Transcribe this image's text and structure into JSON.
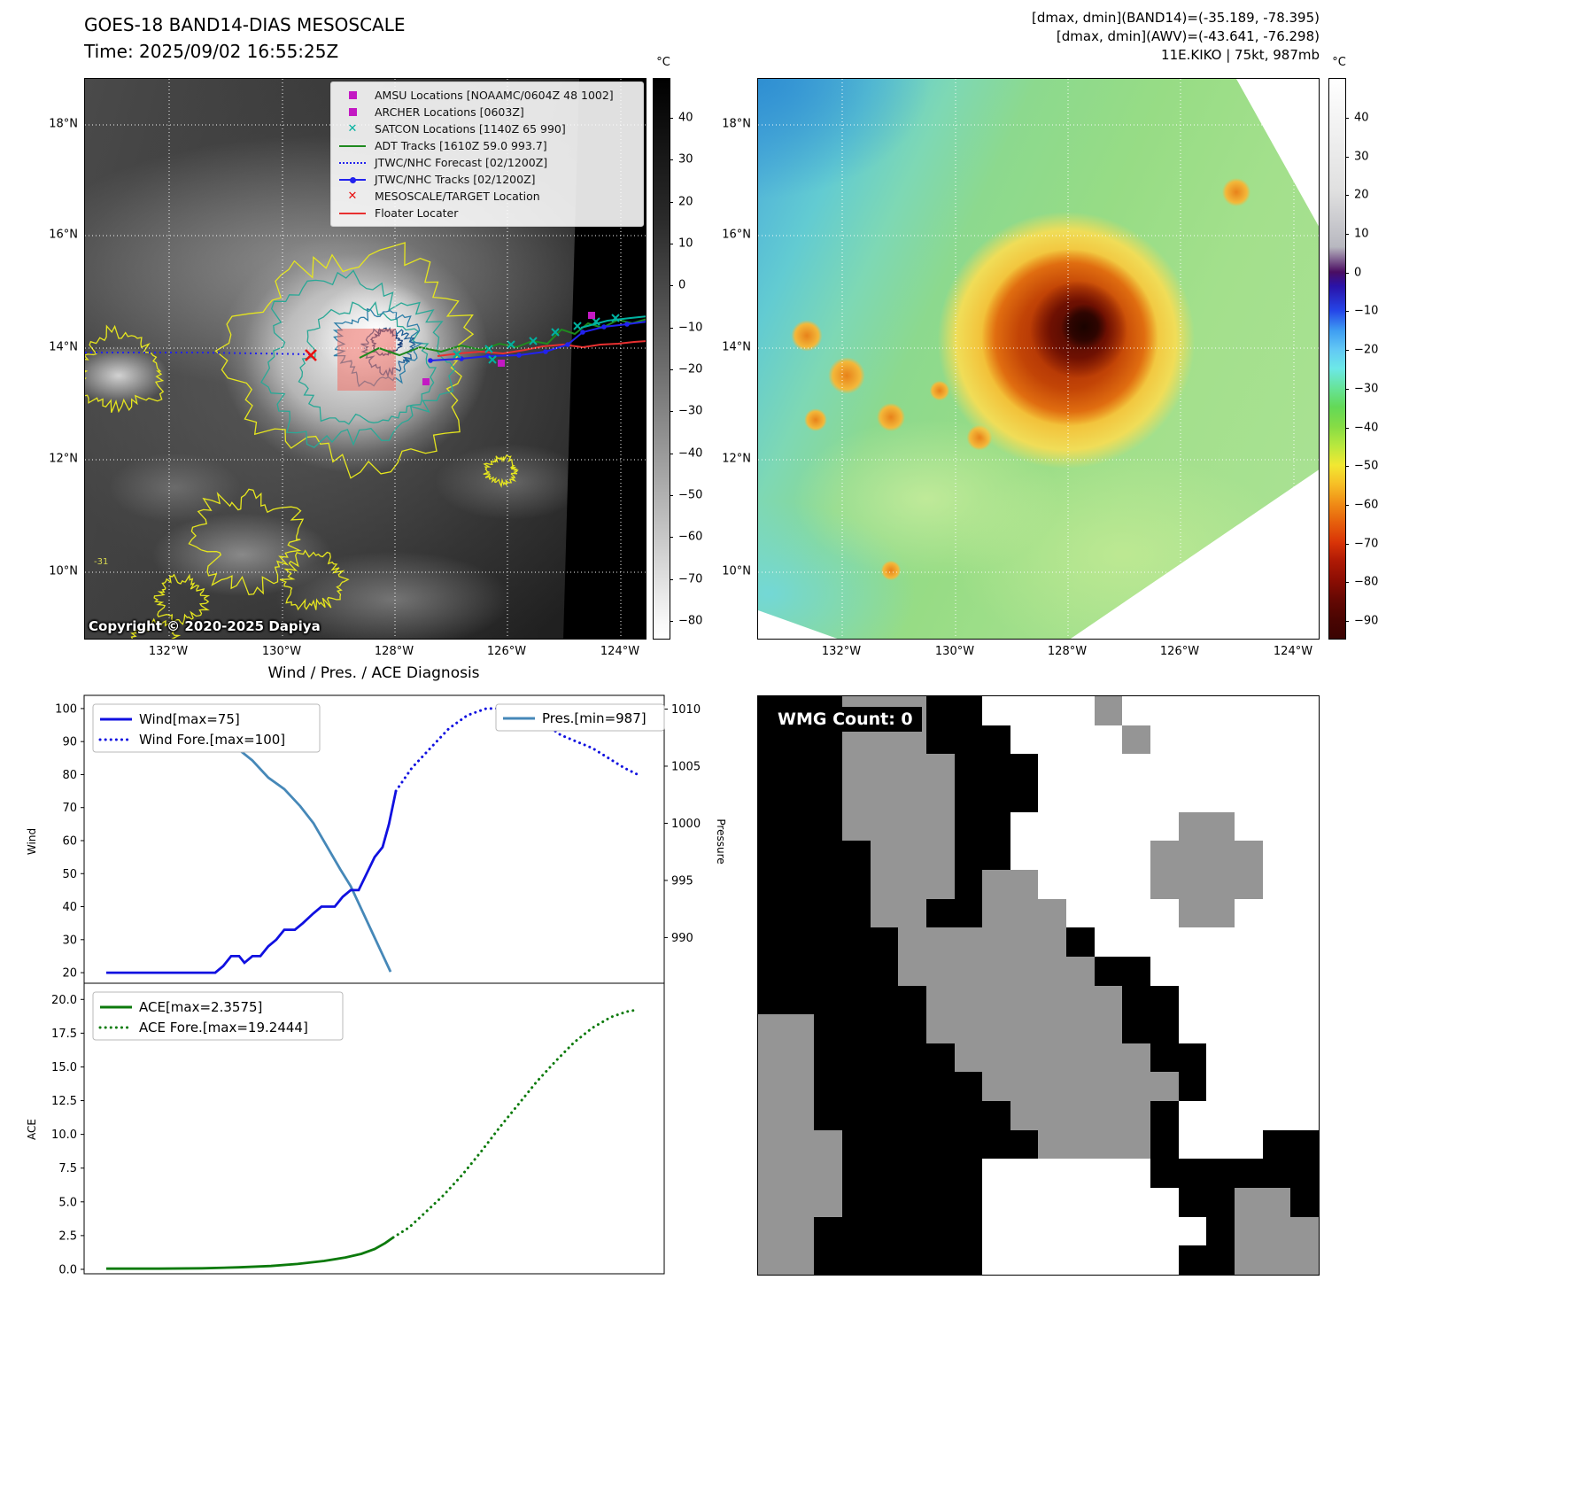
{
  "band14": {
    "title": "GOES-18 BAND14-DIAS MESOSCALE",
    "time": "Time: 2025/09/02 16:55:25Z",
    "copyright": "Copyright © 2020-2025 Dapiya",
    "contour_label": "-31",
    "colorbar_unit": "°C",
    "colorbar_ticks": [
      "40",
      "30",
      "20",
      "10",
      "0",
      "−10",
      "−20",
      "−30",
      "−40",
      "−50",
      "−60",
      "−70",
      "−80"
    ],
    "x_ticks": [
      "132°W",
      "130°W",
      "128°W",
      "126°W",
      "124°W"
    ],
    "y_ticks": [
      "18°N",
      "16°N",
      "14°N",
      "12°N",
      "10°N"
    ],
    "legend": [
      {
        "label": "AMSU Locations [NOAAMC/0604Z 48 1002]",
        "marker": "square",
        "color": "#c319c3"
      },
      {
        "label": "ARCHER Locations [0603Z]",
        "marker": "square",
        "color": "#c319c3"
      },
      {
        "label": "SATCON Locations [1140Z 65 990]",
        "marker": "x",
        "color": "#00b2a0"
      },
      {
        "label": "ADT Tracks [1610Z 59.0 993.7]",
        "marker": "line",
        "color": "#1f8a1f"
      },
      {
        "label": "JTWC/NHC Forecast [02/1200Z]",
        "marker": "dotted",
        "color": "#2222ee"
      },
      {
        "label": "JTWC/NHC Tracks [02/1200Z]",
        "marker": "line-marker",
        "color": "#2222ee"
      },
      {
        "label": "MESOSCALE/TARGET Location",
        "marker": "x",
        "color": "#e81010"
      },
      {
        "label": "Floater Locater",
        "marker": "line",
        "color": "#e83030"
      }
    ]
  },
  "awv": {
    "info_line1": "[dmax, dmin](BAND14)=(-35.189, -78.395)",
    "info_line2": "[dmax, dmin](AWV)=(-43.641, -76.298)",
    "info_line3": "11E.KIKO | 75kt, 987mb",
    "colorbar_unit": "°C",
    "colorbar_ticks": [
      "40",
      "30",
      "20",
      "10",
      "0",
      "−10",
      "−20",
      "−30",
      "−40",
      "−50",
      "−60",
      "−70",
      "−80",
      "−90"
    ],
    "x_ticks": [
      "132°W",
      "130°W",
      "128°W",
      "126°W",
      "124°W"
    ],
    "y_ticks": [
      "18°N",
      "16°N",
      "14°N",
      "12°N",
      "10°N"
    ]
  },
  "diagnosis": {
    "title": "Wind / Pres. / ACE Diagnosis",
    "wind_ylabel": "Wind",
    "pressure_ylabel": "Pressure",
    "ace_ylabel": "ACE",
    "wind_ticks": [
      "100",
      "90",
      "80",
      "70",
      "60",
      "50",
      "40",
      "30",
      "20"
    ],
    "pressure_ticks": [
      "1010",
      "1005",
      "1000",
      "995",
      "990"
    ],
    "ace_ticks": [
      "20.0",
      "17.5",
      "15.0",
      "12.5",
      "10.0",
      "7.5",
      "5.0",
      "2.5",
      "0.0"
    ],
    "legends": {
      "wind": "Wind[max=75]",
      "wind_fore": "Wind Fore.[max=100]",
      "pres": "Pres.[min=987]",
      "ace": "ACE[max=2.3575]",
      "ace_fore": "ACE Fore.[max=19.2444]"
    }
  },
  "wmg": {
    "label": "WMG Count: 0",
    "palette": {
      "0": "#000000",
      "1": "#959595",
      "2": "#ffffff"
    },
    "rows": [
      "00011100222212222222",
      "00011100022221222222",
      "00011110002222222222",
      "00011110002222222222",
      "00011110022222211222",
      "00001110022222111122",
      "00001110112222111122",
      "00001100111222211222",
      "00000111111022222222",
      "00000111111100222222",
      "00000011111110022222",
      "11000011111110022222",
      "11000001111111002222",
      "11000000111111102222",
      "11000000011111022222",
      "11100000001111022200",
      "11100000222222000000",
      "11100000222222200110",
      "11000000222222220111",
      "11000000222222200111"
    ]
  },
  "chart_data": [
    {
      "type": "line",
      "title": "Wind / Pres. / ACE Diagnosis — wind & pressure panel",
      "x_note": "normalized time 0-1; forecast begins near x=0.54",
      "ylabel_left": "Wind",
      "ylabel_right": "Pressure",
      "wind_ylim": [
        16.8,
        104
      ],
      "pressure_ylim": [
        986,
        1011.2
      ],
      "legend_position": "upper left / upper right",
      "series": [
        {
          "name": "Wind[max=75]",
          "axis": "wind",
          "style": "solid",
          "color": "#1010e0",
          "points": [
            [
              0.0,
              20
            ],
            [
              0.205,
              20
            ],
            [
              0.22,
              22
            ],
            [
              0.235,
              25
            ],
            [
              0.25,
              25
            ],
            [
              0.26,
              23
            ],
            [
              0.275,
              25
            ],
            [
              0.29,
              25
            ],
            [
              0.305,
              28
            ],
            [
              0.32,
              30
            ],
            [
              0.335,
              33
            ],
            [
              0.355,
              33
            ],
            [
              0.37,
              35
            ],
            [
              0.39,
              38
            ],
            [
              0.405,
              40
            ],
            [
              0.43,
              40
            ],
            [
              0.445,
              43
            ],
            [
              0.46,
              45
            ],
            [
              0.475,
              45
            ],
            [
              0.49,
              50
            ],
            [
              0.505,
              55
            ],
            [
              0.52,
              58
            ],
            [
              0.532,
              65
            ],
            [
              0.545,
              75
            ]
          ]
        },
        {
          "name": "Wind Fore.[max=100]",
          "axis": "wind",
          "style": "dotted",
          "color": "#1010e0",
          "points": [
            [
              0.545,
              75
            ],
            [
              0.575,
              82
            ],
            [
              0.61,
              88
            ],
            [
              0.645,
              94
            ],
            [
              0.68,
              98
            ],
            [
              0.715,
              100
            ],
            [
              0.75,
              100
            ],
            [
              0.785,
              99
            ],
            [
              0.82,
              96
            ],
            [
              0.855,
              92
            ],
            [
              0.885,
              90
            ],
            [
              0.915,
              88
            ],
            [
              0.945,
              85
            ],
            [
              0.975,
              82
            ],
            [
              1.0,
              80
            ]
          ]
        },
        {
          "name": "Pres.[min=987]",
          "axis": "pressure",
          "style": "solid",
          "color": "#4688b8",
          "points": [
            [
              0.0,
              1009.5
            ],
            [
              0.09,
              1009.5
            ],
            [
              0.14,
              1009
            ],
            [
              0.19,
              1008
            ],
            [
              0.235,
              1007
            ],
            [
              0.275,
              1005.5
            ],
            [
              0.305,
              1004
            ],
            [
              0.335,
              1003
            ],
            [
              0.365,
              1001.5
            ],
            [
              0.39,
              1000
            ],
            [
              0.415,
              998
            ],
            [
              0.44,
              996
            ],
            [
              0.46,
              994.5
            ],
            [
              0.48,
              992.5
            ],
            [
              0.5,
              990.5
            ],
            [
              0.52,
              988.5
            ],
            [
              0.535,
              987
            ]
          ]
        }
      ]
    },
    {
      "type": "line",
      "title": "ACE panel",
      "ylabel": "ACE",
      "ylim": [
        -0.33,
        21.2
      ],
      "legend_position": "upper left",
      "series": [
        {
          "name": "ACE[max=2.3575]",
          "style": "solid",
          "color": "#0c7a0c",
          "points": [
            [
              0.0,
              0.05
            ],
            [
              0.1,
              0.05
            ],
            [
              0.18,
              0.08
            ],
            [
              0.25,
              0.15
            ],
            [
              0.31,
              0.25
            ],
            [
              0.36,
              0.4
            ],
            [
              0.41,
              0.62
            ],
            [
              0.45,
              0.88
            ],
            [
              0.48,
              1.15
            ],
            [
              0.505,
              1.5
            ],
            [
              0.525,
              1.95
            ],
            [
              0.54,
              2.36
            ]
          ]
        },
        {
          "name": "ACE Fore.[max=19.2444]",
          "style": "dotted",
          "color": "#0c7a0c",
          "points": [
            [
              0.54,
              2.36
            ],
            [
              0.57,
              3.1
            ],
            [
              0.6,
              4.2
            ],
            [
              0.635,
              5.5
            ],
            [
              0.67,
              7.0
            ],
            [
              0.705,
              8.7
            ],
            [
              0.74,
              10.5
            ],
            [
              0.775,
              12.2
            ],
            [
              0.81,
              13.9
            ],
            [
              0.845,
              15.4
            ],
            [
              0.88,
              16.8
            ],
            [
              0.915,
              17.9
            ],
            [
              0.95,
              18.7
            ],
            [
              0.98,
              19.1
            ],
            [
              1.0,
              19.24
            ]
          ]
        }
      ]
    }
  ]
}
